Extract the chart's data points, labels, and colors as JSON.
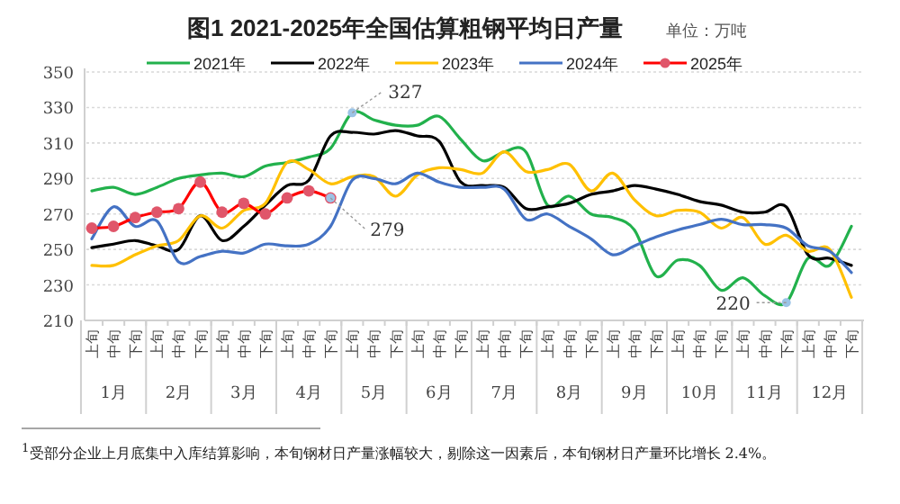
{
  "chart_data": {
    "type": "line",
    "title": "图1  2021-2025年全国估算粗钢平均日产量",
    "subtitle": "单位：万吨",
    "categories": [
      "上旬",
      "中旬",
      "下旬",
      "上旬",
      "中旬",
      "下旬",
      "上旬",
      "中旬",
      "下旬",
      "上旬",
      "中旬",
      "下旬",
      "上旬",
      "中旬",
      "下旬",
      "上旬",
      "中旬",
      "下旬",
      "上旬",
      "中旬",
      "下旬",
      "上旬",
      "中旬",
      "下旬",
      "上旬",
      "中旬",
      "下旬",
      "上旬",
      "中旬",
      "下旬",
      "上旬",
      "中旬",
      "下旬",
      "上旬",
      "中旬",
      "下旬"
    ],
    "series": [
      {
        "name": "2021年",
        "color": "#22b14c",
        "values": [
          283,
          285,
          281,
          285,
          290,
          292,
          293,
          291,
          297,
          299,
          302,
          307,
          327,
          323,
          320,
          320,
          325,
          312,
          300,
          305,
          305,
          275,
          280,
          270,
          268,
          261,
          235,
          244,
          241,
          227,
          234,
          224,
          220,
          245,
          241,
          263
        ]
      },
      {
        "name": "2022年",
        "color": "#000000",
        "values": [
          251,
          253,
          255,
          252,
          250,
          269,
          255,
          263,
          275,
          286,
          289,
          314,
          316,
          315,
          317,
          314,
          311,
          288,
          286,
          285,
          273,
          274,
          276,
          281,
          283,
          286,
          284,
          281,
          277,
          275,
          271,
          271,
          274,
          247,
          245,
          241
        ]
      },
      {
        "name": "2023年",
        "color": "#ffc000",
        "values": [
          241,
          241,
          247,
          252,
          255,
          269,
          262,
          272,
          276,
          299,
          295,
          287,
          291,
          291,
          280,
          292,
          296,
          295,
          293,
          305,
          294,
          295,
          298,
          283,
          293,
          278,
          269,
          272,
          271,
          262,
          268,
          253,
          258,
          249,
          250,
          223
        ]
      },
      {
        "name": "2024年",
        "color": "#4472c4",
        "values": [
          256,
          274,
          263,
          266,
          243,
          246,
          249,
          248,
          253,
          252,
          253,
          263,
          289,
          290,
          287,
          293,
          288,
          285,
          285,
          284,
          267,
          270,
          263,
          256,
          247,
          252,
          257,
          261,
          264,
          267,
          264,
          264,
          262,
          252,
          249,
          237
        ]
      },
      {
        "name": "2025年",
        "color": "#ff0000",
        "marker": "circle",
        "values": [
          262,
          263,
          268,
          271,
          273,
          288,
          271,
          276,
          270,
          279,
          283,
          279,
          null,
          null,
          null,
          null,
          null,
          null,
          null,
          null,
          null,
          null,
          null,
          null,
          null,
          null,
          null,
          null,
          null,
          null,
          null,
          null,
          null,
          null,
          null,
          null
        ]
      }
    ],
    "ylim": [
      210,
      350
    ],
    "yticks": [
      210,
      230,
      250,
      270,
      290,
      310,
      330,
      350
    ],
    "grid": "y",
    "legend": "top",
    "annotations": [
      "1月",
      "2月",
      "3月",
      "4月",
      "5月",
      "6月",
      "7月",
      "8月",
      "9月",
      "10月",
      "11月",
      "12月",
      "327",
      {
        "text": "279",
        "y": 279
      },
      "220",
      "$^{1}$受部分企业上月底集中入库结算影响，本旬钢材日产量涨幅较大，剔除这一因素后，本旬钢材日产量环比增长 2.4%。"
    ]
  }
}
